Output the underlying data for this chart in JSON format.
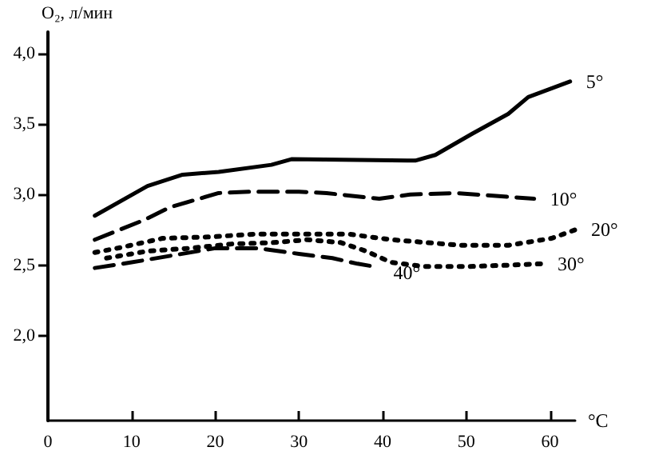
{
  "chart_data": {
    "type": "line",
    "ylabel": "O₂, л/мин",
    "xlabel": "°C",
    "xlim": [
      0,
      63
    ],
    "xticks": [
      0,
      10,
      20,
      30,
      40,
      50,
      60
    ],
    "ylim": [
      1.4,
      4.15
    ],
    "yticks": [
      {
        "value": 2,
        "label": "2,0"
      },
      {
        "value": 2.5,
        "label": "2,5"
      },
      {
        "value": 3,
        "label": "3,0"
      },
      {
        "value": 3.5,
        "label": "3,5"
      },
      {
        "value": 4,
        "label": "4,0"
      }
    ],
    "grid": false,
    "legend": false,
    "marker": "none",
    "series": [
      {
        "name": "5°",
        "color": "#000000",
        "line_style": "solid",
        "x": [
          5.6,
          11.9,
          16.1,
          20.4,
          26.7,
          29.1,
          43.9,
          46.3,
          50.7,
          55.0,
          57.4,
          62.4
        ],
        "values": [
          2.85,
          3.06,
          3.14,
          3.16,
          3.21,
          3.25,
          3.24,
          3.28,
          3.43,
          3.57,
          3.69,
          3.8
        ]
      },
      {
        "name": "10°",
        "color": "#000000",
        "line_style": "dashed",
        "x": [
          5.6,
          11.5,
          14.6,
          20.4,
          24,
          30,
          33.3,
          39.6,
          43.3,
          48.9,
          58.1
        ],
        "values": [
          2.68,
          2.82,
          2.91,
          3.01,
          3.02,
          3.02,
          3.01,
          2.97,
          3.0,
          3.01,
          2.97
        ]
      },
      {
        "name": "20°",
        "color": "#000000",
        "line_style": "dotted",
        "x": [
          5.6,
          8.3,
          13.7,
          19.3,
          24.8,
          30.4,
          35.9,
          41.1,
          49.4,
          55,
          60.2,
          63
        ],
        "values": [
          2.59,
          2.62,
          2.69,
          2.7,
          2.72,
          2.72,
          2.72,
          2.68,
          2.64,
          2.64,
          2.69,
          2.75
        ]
      },
      {
        "name": "30°",
        "color": "#000000",
        "line_style": "dotted",
        "x": [
          7,
          12,
          17,
          22,
          27,
          31,
          35,
          38,
          41,
          45,
          50,
          55,
          59
        ],
        "values": [
          2.55,
          2.6,
          2.62,
          2.65,
          2.66,
          2.68,
          2.66,
          2.6,
          2.52,
          2.49,
          2.49,
          2.5,
          2.51
        ]
      },
      {
        "name": "40°",
        "color": "#000000",
        "line_style": "dashed",
        "x": [
          5.6,
          10,
          15,
          20,
          25,
          30,
          34,
          37,
          39
        ],
        "values": [
          2.48,
          2.52,
          2.57,
          2.62,
          2.62,
          2.58,
          2.55,
          2.51,
          2.49
        ]
      }
    ]
  }
}
